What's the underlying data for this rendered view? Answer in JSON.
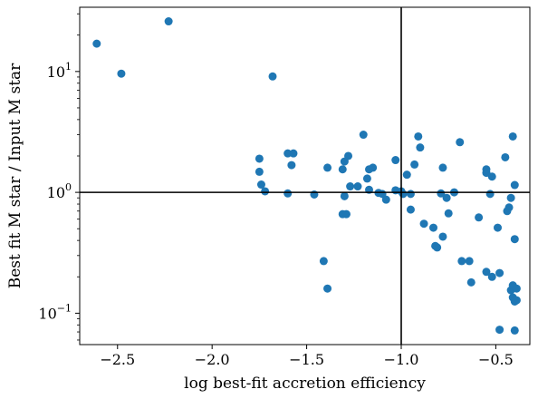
{
  "chart_data": {
    "type": "scatter",
    "title": "",
    "xlabel": "log best-fit accretion efficiency",
    "ylabel": "Best fit M star / Input M star",
    "xlim": [
      -2.7,
      -0.32
    ],
    "ylim": [
      0.055,
      34
    ],
    "yscale": "log",
    "grid": false,
    "marker_color": "#1f77b4",
    "reference_lines": {
      "x": -1.0,
      "y": 1.0,
      "color": "#000000"
    },
    "x_ticks": [
      {
        "value": -2.5,
        "label": "−2.5"
      },
      {
        "value": -2.0,
        "label": "−2.0"
      },
      {
        "value": -1.5,
        "label": "−1.5"
      },
      {
        "value": -1.0,
        "label": "−1.0"
      },
      {
        "value": -0.5,
        "label": "−0.5"
      }
    ],
    "y_ticks": [
      {
        "value": 0.1,
        "base": "10",
        "exp": "−1"
      },
      {
        "value": 1,
        "base": "10",
        "exp": "0"
      },
      {
        "value": 10,
        "base": "10",
        "exp": "1"
      }
    ],
    "points": [
      [
        -2.61,
        17.0
      ],
      [
        -2.48,
        9.6
      ],
      [
        -2.23,
        26.0
      ],
      [
        -1.68,
        9.1
      ],
      [
        -1.75,
        1.9
      ],
      [
        -1.75,
        1.48
      ],
      [
        -1.74,
        1.16
      ],
      [
        -1.72,
        1.02
      ],
      [
        -1.6,
        2.1
      ],
      [
        -1.57,
        2.1
      ],
      [
        -1.58,
        1.68
      ],
      [
        -1.6,
        0.98
      ],
      [
        -1.46,
        0.96
      ],
      [
        -1.41,
        0.27
      ],
      [
        -1.39,
        1.6
      ],
      [
        -1.39,
        0.16
      ],
      [
        -1.31,
        1.55
      ],
      [
        -1.3,
        1.8
      ],
      [
        -1.28,
        2.0
      ],
      [
        -1.3,
        0.93
      ],
      [
        -1.31,
        0.66
      ],
      [
        -1.29,
        0.66
      ],
      [
        -1.27,
        1.12
      ],
      [
        -1.23,
        1.12
      ],
      [
        -1.2,
        3.0
      ],
      [
        -1.18,
        1.3
      ],
      [
        -1.17,
        1.55
      ],
      [
        -1.15,
        1.6
      ],
      [
        -1.17,
        1.05
      ],
      [
        -1.12,
        0.99
      ],
      [
        -1.1,
        0.97
      ],
      [
        -1.08,
        0.87
      ],
      [
        -1.03,
        1.85
      ],
      [
        -1.03,
        1.04
      ],
      [
        -1.0,
        1.02
      ],
      [
        -0.99,
        0.97
      ],
      [
        -0.97,
        1.4
      ],
      [
        -0.95,
        0.97
      ],
      [
        -0.95,
        0.72
      ],
      [
        -0.93,
        1.7
      ],
      [
        -0.91,
        2.9
      ],
      [
        -0.9,
        2.35
      ],
      [
        -0.88,
        0.55
      ],
      [
        -0.83,
        0.51
      ],
      [
        -0.82,
        0.36
      ],
      [
        -0.81,
        0.35
      ],
      [
        -0.79,
        0.98
      ],
      [
        -0.78,
        0.43
      ],
      [
        -0.78,
        1.6
      ],
      [
        -0.76,
        0.9
      ],
      [
        -0.75,
        0.67
      ],
      [
        -0.72,
        1.0
      ],
      [
        -0.69,
        2.6
      ],
      [
        -0.68,
        0.27
      ],
      [
        -0.64,
        0.27
      ],
      [
        -0.63,
        0.18
      ],
      [
        -0.59,
        0.62
      ],
      [
        -0.55,
        1.45
      ],
      [
        -0.55,
        1.55
      ],
      [
        -0.55,
        0.22
      ],
      [
        -0.53,
        0.97
      ],
      [
        -0.52,
        1.35
      ],
      [
        -0.52,
        0.2
      ],
      [
        -0.49,
        0.51
      ],
      [
        -0.48,
        0.215
      ],
      [
        -0.48,
        0.073
      ],
      [
        -0.45,
        1.95
      ],
      [
        -0.44,
        0.7
      ],
      [
        -0.43,
        0.75
      ],
      [
        -0.42,
        0.155
      ],
      [
        -0.42,
        0.9
      ],
      [
        -0.41,
        2.9
      ],
      [
        -0.41,
        0.17
      ],
      [
        -0.41,
        0.135
      ],
      [
        -0.4,
        1.15
      ],
      [
        -0.4,
        0.41
      ],
      [
        -0.4,
        0.125
      ],
      [
        -0.39,
        0.16
      ],
      [
        -0.39,
        0.128
      ],
      [
        -0.4,
        0.072
      ]
    ]
  }
}
